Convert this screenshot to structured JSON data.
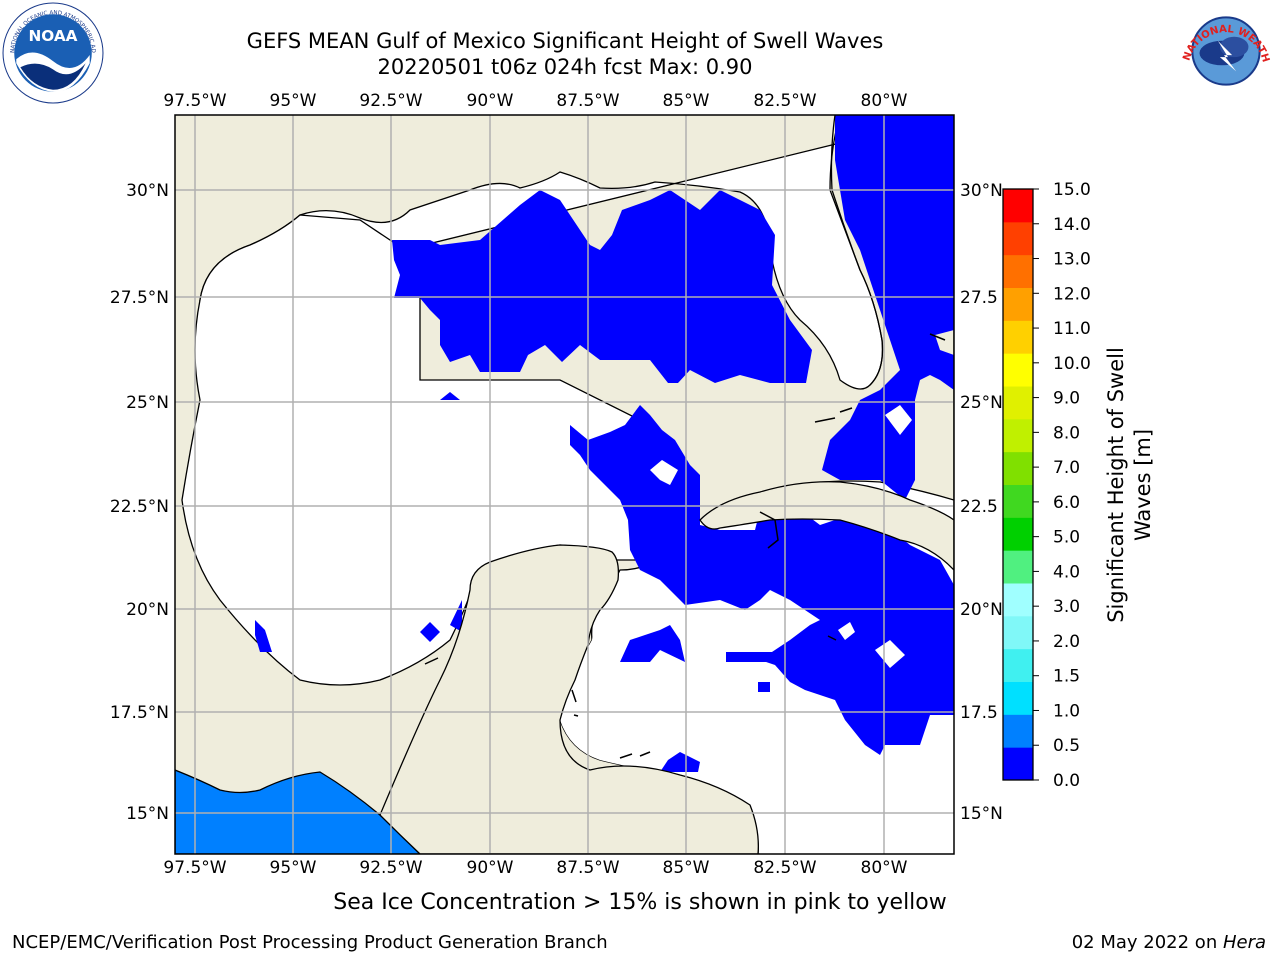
{
  "title_line1": "GEFS MEAN Gulf of Mexico Significant Height of Swell Waves",
  "title_line2": "20220501 t06z 024h fcst   Max: 0.90",
  "logos": {
    "left": "NOAA",
    "right": "NATIONAL WEATHER SERVICE"
  },
  "map": {
    "lon_labels": [
      "97.5°W",
      "95°W",
      "92.5°W",
      "90°W",
      "87.5°W",
      "85°W",
      "82.5°W",
      "80°W"
    ],
    "lat_labels_left": [
      "30°N",
      "27.5°N",
      "25°N",
      "22.5°N",
      "20°N",
      "17.5°N",
      "15°N"
    ],
    "lat_labels_right": [
      "30°N",
      "27.5",
      "25°N",
      "22.5",
      "20°N",
      "17.5",
      "15°N"
    ],
    "colors": {
      "land": "#efeddc",
      "ocean": "#ffffff",
      "swell_low": "#0000ff",
      "swell_mid": "#0080ff",
      "grid": "#b0b0b0",
      "coast": "#000000"
    }
  },
  "colorbar": {
    "label": "Significant Height of Swell Waves [m]",
    "label_line1": "Significant Height of Swell",
    "label_line2": "Waves [m]",
    "ticks": [
      "15.0",
      "14.0",
      "13.0",
      "12.0",
      "11.0",
      "10.0",
      "9.0",
      "8.0",
      "7.0",
      "6.0",
      "5.0",
      "4.0",
      "3.0",
      "2.0",
      "1.5",
      "1.0",
      "0.5",
      "0.0"
    ],
    "colors_bottom_to_top": [
      "#0000ff",
      "#0080ff",
      "#00e0ff",
      "#40f0f0",
      "#80f8f8",
      "#a0ffff",
      "#50f080",
      "#00d000",
      "#40d820",
      "#80e000",
      "#c0f000",
      "#e0f000",
      "#ffff00",
      "#ffd000",
      "#ffa000",
      "#ff7000",
      "#ff4000",
      "#ff0000"
    ]
  },
  "note": "Sea Ice Concentration > 15% is shown in pink to yellow",
  "footer_left": "NCEP/EMC/Verification Post Processing Product Generation Branch",
  "footer_date": "02 May 2022 on ",
  "footer_host": "Hera"
}
